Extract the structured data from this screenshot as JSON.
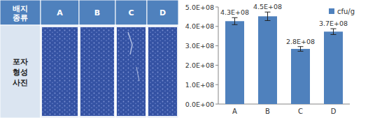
{
  "table": {
    "header": [
      "배지 종류",
      "A",
      "B",
      "C",
      "D"
    ],
    "row_label": "포자 형성 사진"
  },
  "chart_data": {
    "type": "bar",
    "categories": [
      "A",
      "B",
      "C",
      "D"
    ],
    "series": [
      {
        "name": "cfu/g",
        "color": "#4f81bd",
        "values": [
          427000000,
          452000000,
          284000000,
          373000000
        ],
        "errors": [
          18000000,
          22000000,
          12000000,
          15000000
        ],
        "value_labels": [
          "4.3E+08",
          "4.5E+08",
          "2.8E+08",
          "3.7E+08"
        ]
      }
    ],
    "ylim": [
      0,
      500000000
    ],
    "yticks": [
      {
        "value": 0,
        "label": "0.0E+00"
      },
      {
        "value": 100000000,
        "label": "1.0E+08"
      },
      {
        "value": 200000000,
        "label": "2.0E+08"
      },
      {
        "value": 300000000,
        "label": "3.0E+08"
      },
      {
        "value": 400000000,
        "label": "4.0E+08"
      },
      {
        "value": 500000000,
        "label": "5.0E+08"
      }
    ],
    "grid": false,
    "legend": "top-right",
    "data_labels": true
  }
}
